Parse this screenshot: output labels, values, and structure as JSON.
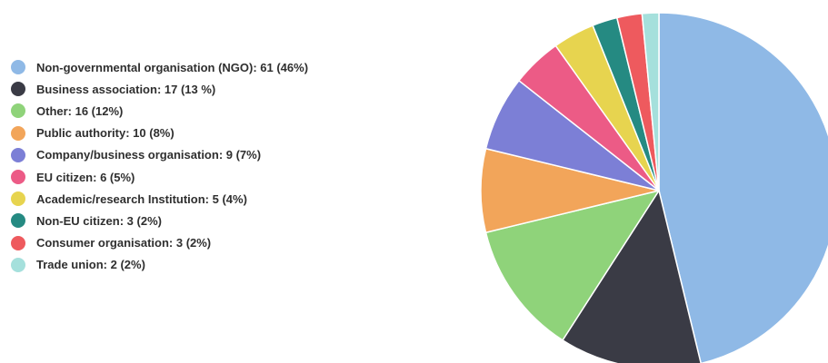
{
  "chart_data": {
    "type": "pie",
    "title": "",
    "start_angle_deg": 0,
    "direction": "clockwise",
    "legend_position": "left",
    "slices": [
      {
        "label": "Non-governmental organisation (NGO): 61 (46%)",
        "category": "Non-governmental organisation (NGO)",
        "value": 61,
        "percent": 46,
        "color": "#8fb9e6"
      },
      {
        "label": "Business association: 17 (13 %)",
        "category": "Business association",
        "value": 17,
        "percent": 13,
        "color": "#3a3b45"
      },
      {
        "label": "Other: 16 (12%)",
        "category": "Other",
        "value": 16,
        "percent": 12,
        "color": "#8fd37a"
      },
      {
        "label": "Public authority: 10 (8%)",
        "category": "Public authority",
        "value": 10,
        "percent": 8,
        "color": "#f2a55a"
      },
      {
        "label": "Company/business organisation: 9 (7%)",
        "category": "Company/business organisation",
        "value": 9,
        "percent": 7,
        "color": "#7c7fd6"
      },
      {
        "label": "EU citizen: 6  (5%)",
        "category": "EU citizen",
        "value": 6,
        "percent": 5,
        "color": "#ec5b86"
      },
      {
        "label": "Academic/research Institution: 5 (4%)",
        "category": "Academic/research Institution",
        "value": 5,
        "percent": 4,
        "color": "#e7d44f"
      },
      {
        "label": "Non-EU citizen: 3 (2%)",
        "category": "Non-EU citizen",
        "value": 3,
        "percent": 2,
        "color": "#258a82"
      },
      {
        "label": "Consumer organisation: 3 (2%)",
        "category": "Consumer organisation",
        "value": 3,
        "percent": 2,
        "color": "#ee5a5e"
      },
      {
        "label": "Trade union: 2 (2%)",
        "category": "Trade union",
        "value": 2,
        "percent": 2,
        "color": "#a5e0dc"
      }
    ]
  }
}
